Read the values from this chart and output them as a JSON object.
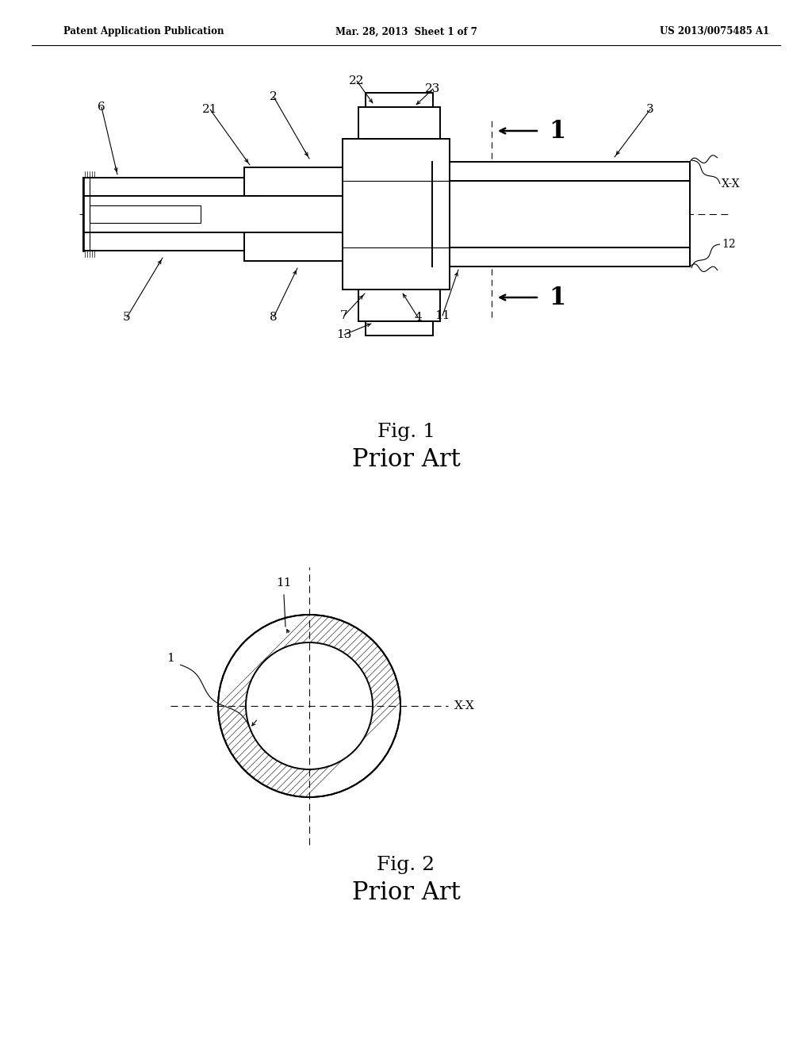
{
  "bg_color": "#ffffff",
  "line_color": "#000000",
  "header_left": "Patent Application Publication",
  "header_center": "Mar. 28, 2013  Sheet 1 of 7",
  "header_right": "US 2013/0075485 A1",
  "fig1_caption": "Fig. 1",
  "fig1_subcaption": "Prior Art",
  "fig2_caption": "Fig. 2",
  "fig2_subcaption": "Prior Art"
}
